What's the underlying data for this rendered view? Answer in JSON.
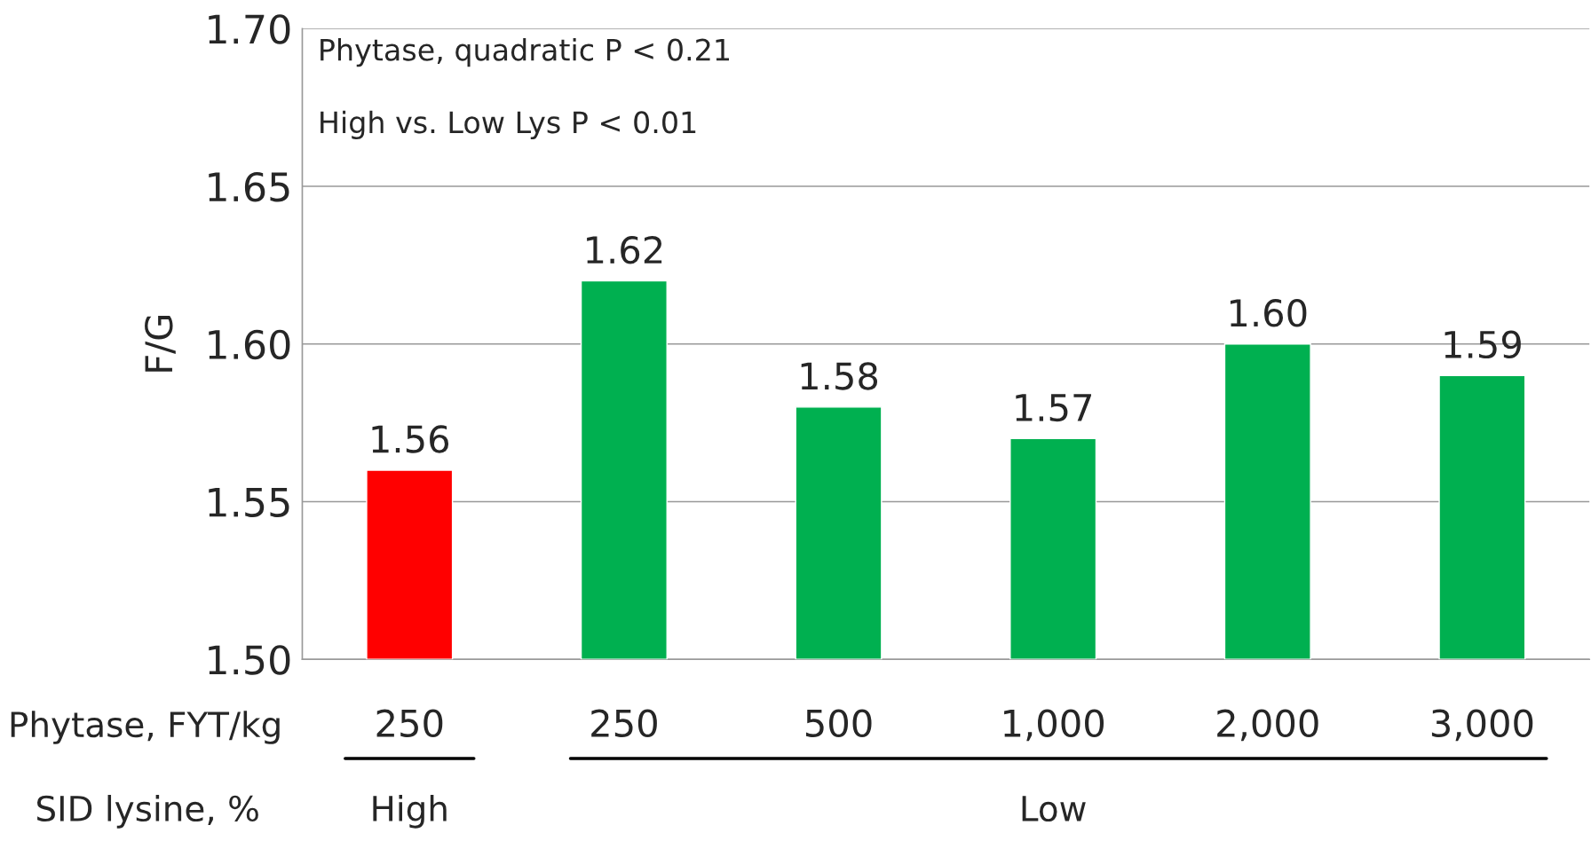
{
  "chart_data": {
    "type": "bar",
    "xlabel": "Phytase, FYT/kg",
    "ylabel": "F/G",
    "categories": [
      "250",
      "250",
      "500",
      "1,000",
      "2,000",
      "3,000"
    ],
    "values": [
      1.56,
      1.62,
      1.58,
      1.57,
      1.6,
      1.59
    ],
    "colors": [
      "#ff0000",
      "#00b050",
      "#00b050",
      "#00b050",
      "#00b050",
      "#00b050"
    ],
    "value_labels": [
      "1.56",
      "1.62",
      "1.58",
      "1.57",
      "1.60",
      "1.59"
    ],
    "ylim": [
      1.5,
      1.7
    ],
    "yticks": [
      {
        "value": 1.5,
        "label": "1.50"
      },
      {
        "value": 1.55,
        "label": "1.55"
      },
      {
        "value": 1.6,
        "label": "1.60"
      },
      {
        "value": 1.65,
        "label": "1.65"
      },
      {
        "value": 1.7,
        "label": "1.70"
      }
    ],
    "grid": "y",
    "annotations": [
      "Phytase, quadratic P < 0.21",
      "High vs. Low Lys P < 0.01",
      "SID lysine, %",
      "High",
      "Low"
    ]
  }
}
